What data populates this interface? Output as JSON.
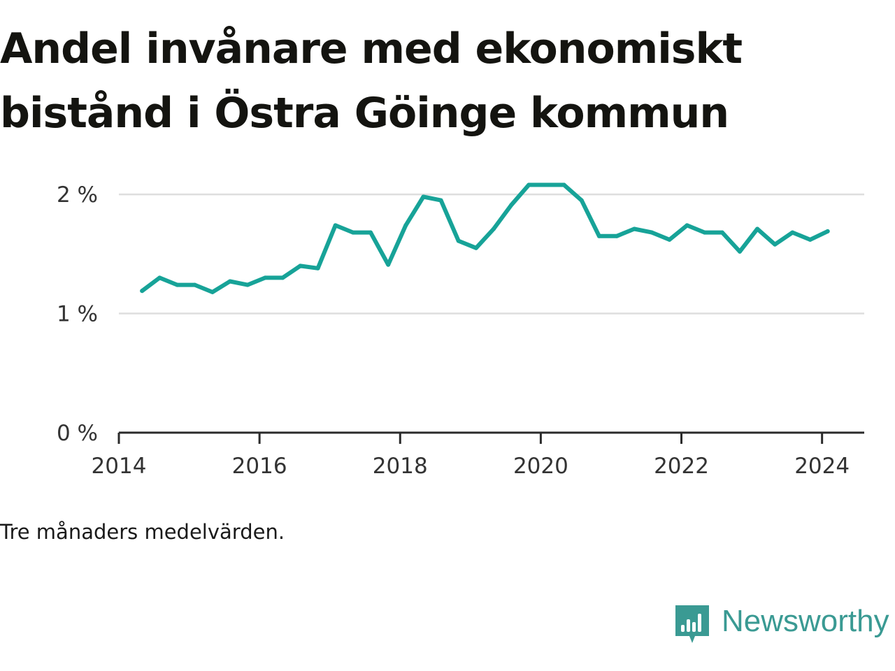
{
  "title": "Andel invånare med ekonomiskt bistånd i Östra Göinge kommun",
  "note": "Tre månaders medelvärden.",
  "brand": {
    "name": "Newsworthy",
    "logo_icon": "newsworthy-bar-chart-icon",
    "color": "#3a9a93"
  },
  "chart_data": {
    "type": "line",
    "title": "Andel invånare med ekonomiskt bistånd i Östra Göinge kommun",
    "xlabel": "",
    "ylabel": "",
    "xlim": [
      2014,
      2024.6
    ],
    "ylim": [
      0,
      2.2
    ],
    "x_ticks": [
      2014,
      2016,
      2018,
      2020,
      2022,
      2024
    ],
    "x_tick_labels": [
      "2014",
      "2016",
      "2018",
      "2020",
      "2022",
      "2024"
    ],
    "y_ticks": [
      0,
      1,
      2
    ],
    "y_tick_labels": [
      "0 %",
      "1 %",
      "2 %"
    ],
    "grid": "horizontal",
    "line_color": "#17a398",
    "series": [
      {
        "x": [
          "2014-05",
          "2014-08",
          "2014-11",
          "2015-02",
          "2015-05",
          "2015-08",
          "2015-11",
          "2016-02",
          "2016-05",
          "2016-08",
          "2016-11",
          "2017-02",
          "2017-05",
          "2017-08",
          "2017-11",
          "2018-02",
          "2018-05",
          "2018-08",
          "2018-11",
          "2019-02",
          "2019-05",
          "2019-08",
          "2019-11",
          "2020-02",
          "2020-05",
          "2020-08",
          "2020-11",
          "2021-02",
          "2021-05",
          "2021-08",
          "2021-11",
          "2022-02",
          "2022-05",
          "2022-08",
          "2022-11",
          "2023-02",
          "2023-05",
          "2023-08",
          "2023-11",
          "2024-02"
        ],
        "x_numeric": [
          2014.33,
          2014.58,
          2014.83,
          2015.08,
          2015.33,
          2015.58,
          2015.83,
          2016.08,
          2016.33,
          2016.58,
          2016.83,
          2017.08,
          2017.33,
          2017.58,
          2017.83,
          2018.08,
          2018.33,
          2018.58,
          2018.83,
          2019.08,
          2019.33,
          2019.58,
          2019.83,
          2020.08,
          2020.33,
          2020.58,
          2020.83,
          2021.08,
          2021.33,
          2021.58,
          2021.83,
          2022.08,
          2022.33,
          2022.58,
          2022.83,
          2023.08,
          2023.33,
          2023.58,
          2023.83,
          2024.08
        ],
        "values": [
          1.19,
          1.3,
          1.24,
          1.24,
          1.18,
          1.27,
          1.24,
          1.3,
          1.3,
          1.4,
          1.38,
          1.74,
          1.68,
          1.68,
          1.41,
          1.74,
          1.98,
          1.95,
          1.61,
          1.55,
          1.71,
          1.91,
          2.08,
          2.08,
          2.08,
          1.95,
          1.65,
          1.65,
          1.71,
          1.68,
          1.62,
          1.74,
          1.68,
          1.68,
          1.52,
          1.71,
          1.58,
          1.68,
          1.62,
          1.69
        ]
      }
    ]
  }
}
